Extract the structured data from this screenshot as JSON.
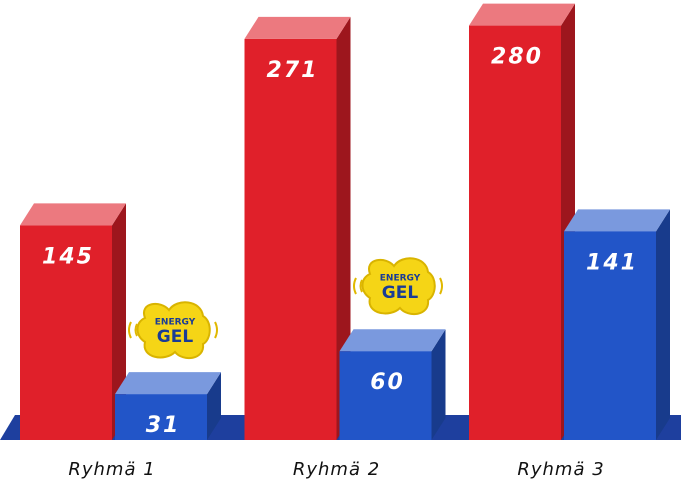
{
  "chart_data": {
    "type": "bar3d",
    "categories": [
      "Ryhmä 1",
      "Ryhmä 2",
      "Ryhmä 3"
    ],
    "series": [
      {
        "color": "#e0202a",
        "values": [
          145,
          271,
          280
        ]
      },
      {
        "color": "#2255c8",
        "values": [
          31,
          60,
          141
        ]
      }
    ],
    "annotations": [
      "ENERGY",
      "GEL"
    ]
  }
}
